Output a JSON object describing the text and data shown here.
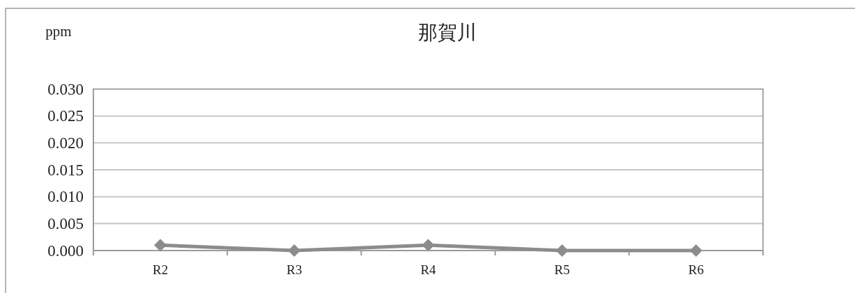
{
  "chart_data": {
    "type": "line",
    "title": "那賀川",
    "ylabel": "ppm",
    "categories": [
      "R2",
      "R3",
      "R4",
      "R5",
      "R6"
    ],
    "series": [
      {
        "color": "#8c8c8e",
        "values": [
          0.001,
          0,
          0.001,
          0,
          0
        ]
      }
    ],
    "ylim": [
      0,
      0.03
    ],
    "yticks": [
      {
        "value": 0,
        "label": "0.000"
      },
      {
        "value": 0.005,
        "label": "0.005"
      },
      {
        "value": 0.01,
        "label": "0.010"
      },
      {
        "value": 0.015,
        "label": "0.015"
      },
      {
        "value": 0.02,
        "label": "0.020"
      },
      {
        "value": 0.025,
        "label": "0.025"
      },
      {
        "value": 0.03,
        "label": "0.030"
      }
    ],
    "grid": "y",
    "marker": "diamond",
    "line_style": "solid"
  }
}
